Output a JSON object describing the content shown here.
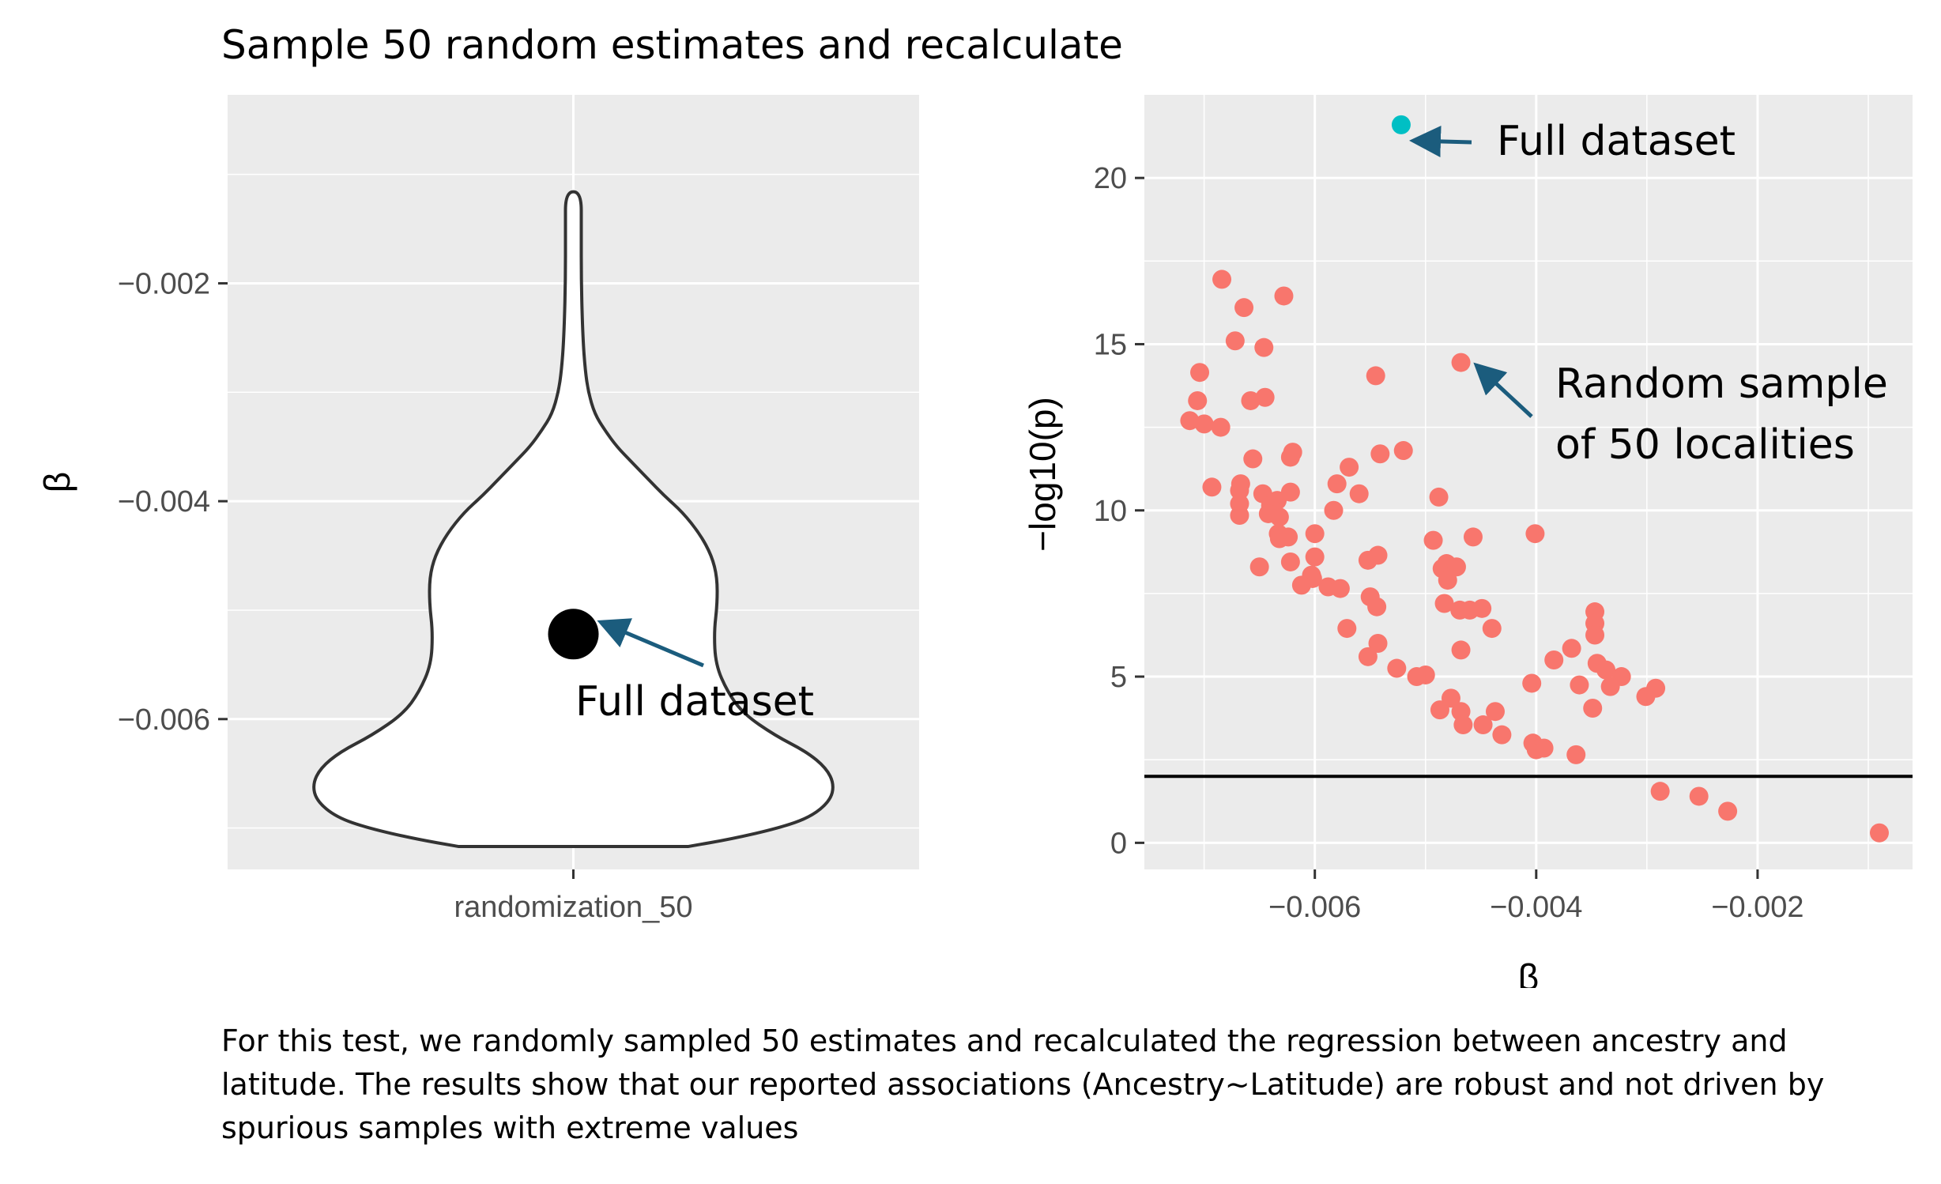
{
  "title": "Sample 50 random estimates and recalculate",
  "caption": "For this test, we randomly sampled 50 estimates and recalculated the regression between ancestry and latitude. The results show that our reported associations (Ancestry~Latitude) are robust and not driven by spurious samples with extreme values",
  "colors": {
    "panel_bg": "#ebebeb",
    "grid": "#ffffff",
    "violin_stroke": "#333333",
    "random_points": "#f8766d",
    "full_point": "#00bfc4",
    "arrow": "#1b5c7d",
    "hline": "#000000"
  },
  "chart_data": [
    {
      "type": "violin",
      "xlabel": "",
      "ylabel": "β",
      "categories": [
        "randomization_50"
      ],
      "ylim": [
        -0.00738,
        -0.00027
      ],
      "yticks": [
        -0.006,
        -0.004,
        -0.002
      ],
      "ytick_labels": [
        "−0.006",
        "−0.004",
        "−0.002"
      ],
      "violin_range": [
        -0.00717,
        -0.00116
      ],
      "full_dataset_beta": -0.00522,
      "annotation": "Full dataset"
    },
    {
      "type": "scatter",
      "xlabel": "β",
      "ylabel": "−log10(p)",
      "xlim": [
        -0.00754,
        -0.0006
      ],
      "ylim": [
        -0.8,
        22.5
      ],
      "xticks": [
        -0.006,
        -0.004,
        -0.002
      ],
      "xtick_labels": [
        "−0.006",
        "−0.004",
        "−0.002"
      ],
      "yticks": [
        0,
        5,
        10,
        15,
        20
      ],
      "ytick_labels": [
        "0",
        "5",
        "10",
        "15",
        "20"
      ],
      "hline": 2,
      "full_dataset": {
        "x": -0.00522,
        "y": 21.6
      },
      "annotations": [
        "Full dataset",
        "Random sample",
        "of 50 localities"
      ],
      "series": [
        {
          "points": [
            [
              -0.00684,
              16.95
            ],
            [
              -0.00664,
              16.1
            ],
            [
              -0.00628,
              16.45
            ],
            [
              -0.00672,
              15.1
            ],
            [
              -0.00646,
              14.9
            ],
            [
              -0.00704,
              14.15
            ],
            [
              -0.00545,
              14.05
            ],
            [
              -0.00468,
              14.45
            ],
            [
              -0.00706,
              13.3
            ],
            [
              -0.00658,
              13.3
            ],
            [
              -0.00645,
              13.4
            ],
            [
              -0.00713,
              12.7
            ],
            [
              -0.007,
              12.6
            ],
            [
              -0.00685,
              12.5
            ],
            [
              -0.0062,
              11.75
            ],
            [
              -0.00622,
              11.6
            ],
            [
              -0.00656,
              11.55
            ],
            [
              -0.0052,
              11.8
            ],
            [
              -0.00541,
              11.7
            ],
            [
              -0.00569,
              11.3
            ],
            [
              -0.00667,
              10.8
            ],
            [
              -0.00668,
              10.6
            ],
            [
              -0.00693,
              10.7
            ],
            [
              -0.0058,
              10.8
            ],
            [
              -0.0056,
              10.5
            ],
            [
              -0.00622,
              10.55
            ],
            [
              -0.00647,
              10.5
            ],
            [
              -0.00634,
              10.3
            ],
            [
              -0.0064,
              10.15
            ],
            [
              -0.00668,
              10.2
            ],
            [
              -0.00668,
              9.85
            ],
            [
              -0.00642,
              9.9
            ],
            [
              -0.00632,
              9.8
            ],
            [
              -0.00583,
              10.0
            ],
            [
              -0.00488,
              10.4
            ],
            [
              -0.00633,
              9.3
            ],
            [
              -0.00632,
              9.15
            ],
            [
              -0.00624,
              9.2
            ],
            [
              -0.006,
              9.3
            ],
            [
              -0.00493,
              9.1
            ],
            [
              -0.00457,
              9.2
            ],
            [
              -0.00401,
              9.3
            ],
            [
              -0.006,
              8.6
            ],
            [
              -0.00543,
              8.65
            ],
            [
              -0.00552,
              8.5
            ],
            [
              -0.00481,
              8.4
            ],
            [
              -0.00485,
              8.25
            ],
            [
              -0.00472,
              8.3
            ],
            [
              -0.0065,
              8.3
            ],
            [
              -0.00622,
              8.45
            ],
            [
              -0.00603,
              8.05
            ],
            [
              -0.00602,
              7.95
            ],
            [
              -0.00588,
              7.7
            ],
            [
              -0.00577,
              7.65
            ],
            [
              -0.00612,
              7.75
            ],
            [
              -0.0048,
              7.9
            ],
            [
              -0.0055,
              7.4
            ],
            [
              -0.00544,
              7.1
            ],
            [
              -0.00483,
              7.2
            ],
            [
              -0.00469,
              7.0
            ],
            [
              -0.0046,
              7.0
            ],
            [
              -0.00449,
              7.05
            ],
            [
              -0.00347,
              6.95
            ],
            [
              -0.00347,
              6.6
            ],
            [
              -0.00347,
              6.25
            ],
            [
              -0.00571,
              6.45
            ],
            [
              -0.0044,
              6.45
            ],
            [
              -0.00543,
              6.0
            ],
            [
              -0.00468,
              5.8
            ],
            [
              -0.00552,
              5.6
            ],
            [
              -0.00368,
              5.85
            ],
            [
              -0.00384,
              5.5
            ],
            [
              -0.00345,
              5.4
            ],
            [
              -0.00337,
              5.2
            ],
            [
              -0.00323,
              5.0
            ],
            [
              -0.00526,
              5.25
            ],
            [
              -0.00508,
              5.0
            ],
            [
              -0.005,
              5.05
            ],
            [
              -0.00404,
              4.8
            ],
            [
              -0.00361,
              4.75
            ],
            [
              -0.00333,
              4.7
            ],
            [
              -0.00292,
              4.65
            ],
            [
              -0.00301,
              4.4
            ],
            [
              -0.00477,
              4.35
            ],
            [
              -0.00487,
              4.0
            ],
            [
              -0.00468,
              3.95
            ],
            [
              -0.00437,
              3.95
            ],
            [
              -0.00349,
              4.05
            ],
            [
              -0.00466,
              3.55
            ],
            [
              -0.00448,
              3.55
            ],
            [
              -0.00431,
              3.25
            ],
            [
              -0.00403,
              3.0
            ],
            [
              -0.004,
              2.8
            ],
            [
              -0.00393,
              2.85
            ],
            [
              -0.00364,
              2.65
            ],
            [
              -0.00288,
              1.55
            ],
            [
              -0.00253,
              1.4
            ],
            [
              -0.00227,
              0.95
            ],
            [
              -0.0009,
              0.3
            ]
          ]
        }
      ]
    }
  ]
}
